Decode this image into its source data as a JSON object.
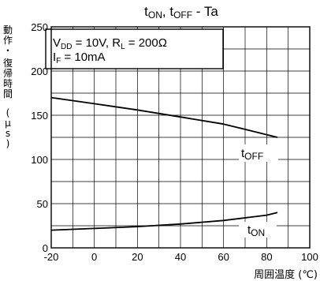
{
  "chart_data": {
    "type": "line",
    "title": {
      "base1": "t",
      "sub1": "ON",
      "sep": ", ",
      "base2": "t",
      "sub2": "OFF",
      "tail": " - Ta"
    },
    "xlabel": "周囲温度 (℃)",
    "ylabel_part1": "動作・",
    "ylabel_part2": "復帰時間",
    "ylabel_part3": "(μs)",
    "xlim": [
      -20,
      100
    ],
    "ylim": [
      0,
      250
    ],
    "x_ticks": [
      "-20",
      "0",
      "20",
      "40",
      "60",
      "80",
      "100"
    ],
    "y_ticks": [
      "0",
      "50",
      "100",
      "150",
      "200",
      "250"
    ],
    "grid": true,
    "conditions": {
      "line1": {
        "v": "V",
        "v_sub": "DD",
        "v_val": " = 10V, ",
        "r": "R",
        "r_sub": "L",
        "r_val": " = 200Ω"
      },
      "line2": {
        "i": "I",
        "i_sub": "F",
        "i_val": " = 10mA"
      }
    },
    "series": [
      {
        "name": "tOFF",
        "label_base": "t",
        "label_sub": "OFF",
        "x": [
          -20,
          0,
          20,
          40,
          60,
          70,
          80,
          85
        ],
        "y": [
          170,
          163,
          156,
          148,
          140,
          134,
          128,
          125
        ]
      },
      {
        "name": "tON",
        "label_base": "t",
        "label_sub": "ON",
        "x": [
          -20,
          0,
          20,
          40,
          60,
          80,
          85
        ],
        "y": [
          20,
          22,
          24,
          27,
          31,
          37,
          40
        ]
      }
    ]
  }
}
